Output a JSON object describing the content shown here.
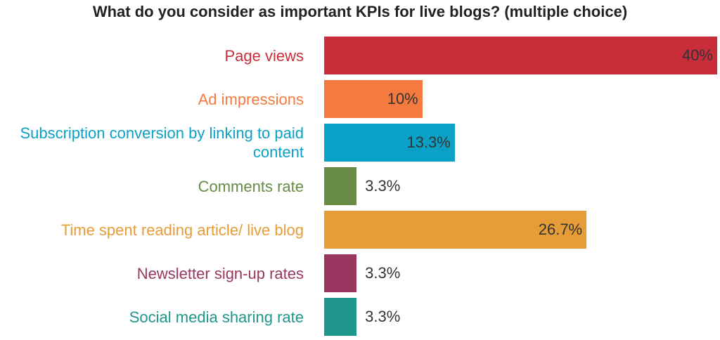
{
  "chart_data": {
    "type": "bar",
    "orientation": "horizontal",
    "title": "What do you consider as important KPIs for live blogs? (multiple choice)",
    "categories": [
      "Page views",
      "Ad impressions",
      "Subscription conversion by linking to paid content",
      "Comments rate",
      "Time spent reading article/ live blog",
      "Newsletter sign-up rates",
      "Social media sharing rate"
    ],
    "values": [
      40,
      10,
      13.3,
      3.3,
      26.7,
      3.3,
      3.3
    ],
    "value_labels": [
      "40%",
      "10%",
      "13.3%",
      "3.3%",
      "26.7%",
      "3.3%",
      "3.3%"
    ],
    "colors": [
      "#c92d39",
      "#f57a3f",
      "#0aa1c6",
      "#678b45",
      "#e69c37",
      "#9a365f",
      "#1f968b"
    ]
  }
}
